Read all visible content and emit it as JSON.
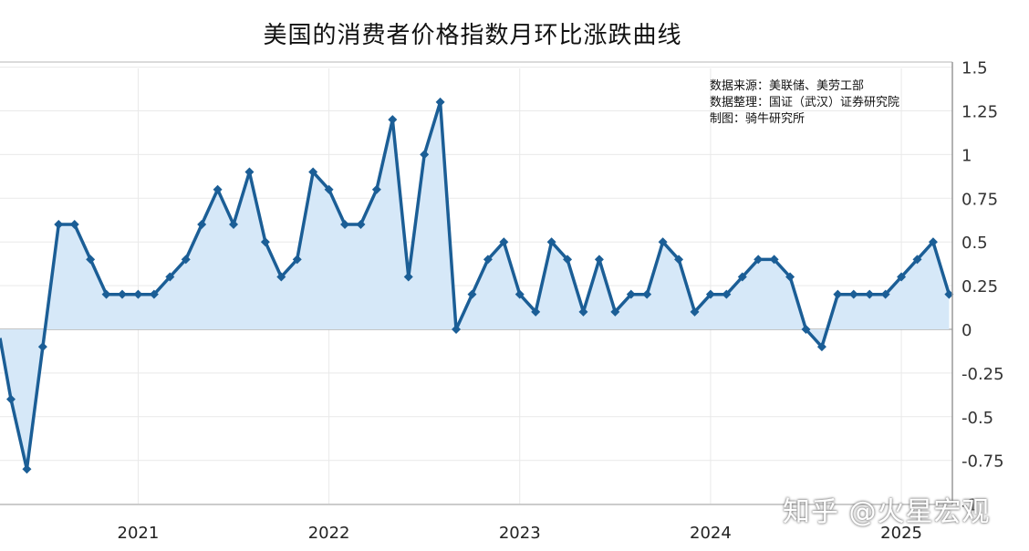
{
  "title": "美国的消费者价格指数月环比涨跌曲线",
  "source_notes": [
    "数据来源：美联储、美劳工部",
    "数据整理：国证（武汉）证券研究院",
    "制图：骑牛研究所"
  ],
  "watermark": "知乎 @火星宏观",
  "colors": {
    "line": "#1b5e96",
    "fill": "#d6e8f8",
    "grid": "#e9e9e9",
    "zero": "#b3b3b3",
    "axis": "#999999"
  },
  "chart_data": {
    "type": "area",
    "x_label_format": "YYYY-MM",
    "x": [
      "2020-05",
      "2020-06",
      "2020-07",
      "2020-08",
      "2020-09",
      "2020-10",
      "2020-11",
      "2020-12",
      "2021-01",
      "2021-02",
      "2021-03",
      "2021-04",
      "2021-05",
      "2021-06",
      "2021-07",
      "2021-08",
      "2021-09",
      "2021-10",
      "2021-11",
      "2021-12",
      "2022-01",
      "2022-02",
      "2022-03",
      "2022-04",
      "2022-05",
      "2022-06",
      "2022-07",
      "2022-08",
      "2022-09",
      "2022-10",
      "2022-11",
      "2022-12",
      "2023-01",
      "2023-02",
      "2023-03",
      "2023-04",
      "2023-05",
      "2023-06",
      "2023-07",
      "2023-08",
      "2023-09",
      "2023-10",
      "2023-11",
      "2023-12",
      "2024-01",
      "2024-02",
      "2024-03",
      "2024-04",
      "2024-05",
      "2024-06",
      "2024-07",
      "2024-08",
      "2024-09",
      "2024-10",
      "2024-11",
      "2024-12",
      "2025-01",
      "2025-02",
      "2025-03",
      "2025-04"
    ],
    "values": [
      -0.4,
      -0.8,
      -0.1,
      0.6,
      0.6,
      0.4,
      0.2,
      0.2,
      0.2,
      0.2,
      0.3,
      0.4,
      0.6,
      0.8,
      0.6,
      0.9,
      0.5,
      0.3,
      0.4,
      0.9,
      0.8,
      0.6,
      0.6,
      0.8,
      1.2,
      0.3,
      1.0,
      1.3,
      0.0,
      0.2,
      0.4,
      0.5,
      0.2,
      0.1,
      0.5,
      0.4,
      0.1,
      0.4,
      0.1,
      0.2,
      0.2,
      0.5,
      0.4,
      0.1,
      0.2,
      0.2,
      0.3,
      0.4,
      0.4,
      0.3,
      0.0,
      -0.1,
      0.2,
      0.2,
      0.2,
      0.2,
      0.3,
      0.4,
      0.5,
      0.2
    ],
    "series_start_value": -0.05,
    "x_ticks": [
      "2021",
      "2022",
      "2023",
      "2024",
      "2025"
    ],
    "y_ticks": [
      "1.5",
      "1.25",
      "1",
      "0.75",
      "0.5",
      "0.25",
      "0",
      "-0.25",
      "-0.5",
      "-0.75",
      "-1"
    ],
    "ylim": [
      -1,
      1.5
    ],
    "y_axis_side": "right",
    "grid": true,
    "title": "美国的消费者价格指数月环比涨跌曲线"
  }
}
